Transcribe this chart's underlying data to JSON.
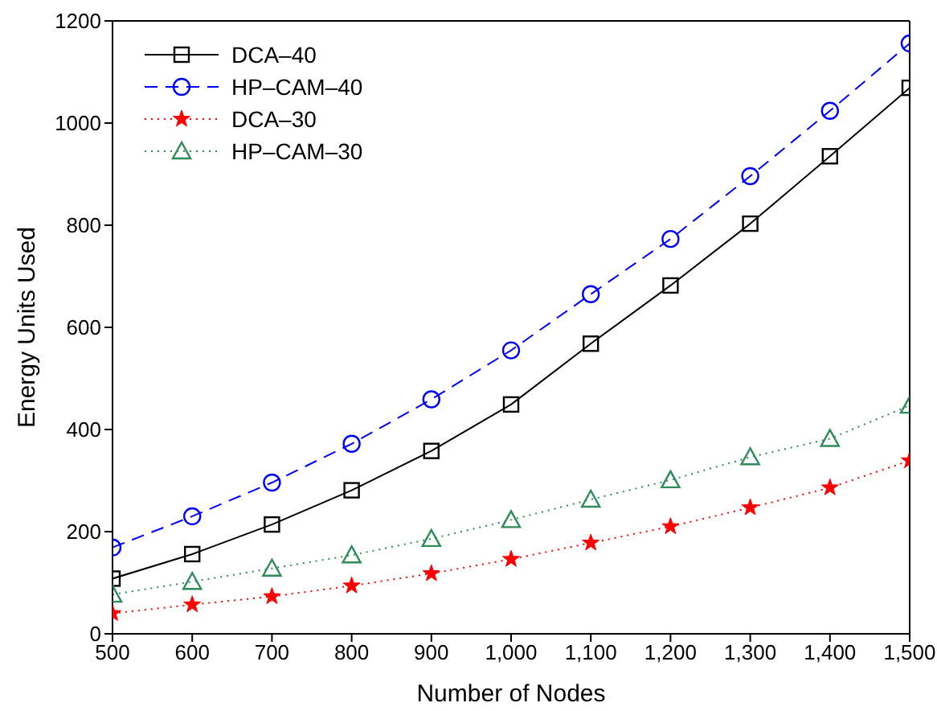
{
  "chart_data": {
    "type": "line",
    "xlabel": "Number of Nodes",
    "ylabel": "Energy Units Used",
    "x": [
      500,
      600,
      700,
      800,
      900,
      1000,
      1100,
      1200,
      1300,
      1400,
      1500
    ],
    "series": [
      {
        "name": "DCA–40",
        "color": "#000000",
        "marker": "square",
        "line_style": "solid",
        "values": [
          108,
          156,
          214,
          281,
          358,
          449,
          568,
          682,
          803,
          935,
          1069
        ]
      },
      {
        "name": "HP–CAM–40",
        "color": "#0000ff",
        "marker": "circle",
        "line_style": "dashed",
        "values": [
          169,
          230,
          296,
          372,
          459,
          555,
          665,
          773,
          896,
          1024,
          1156
        ]
      },
      {
        "name": "DCA–30",
        "color": "#ff0000",
        "marker": "star",
        "line_style": "dotted",
        "values": [
          40,
          57,
          73,
          94,
          118,
          146,
          178,
          210,
          247,
          286,
          339
        ]
      },
      {
        "name": "HP–CAM–30",
        "color": "#2e8b57",
        "marker": "triangle",
        "line_style": "dotted",
        "values": [
          77,
          102,
          128,
          154,
          186,
          223,
          263,
          301,
          346,
          382,
          447
        ]
      }
    ],
    "xlim": [
      500,
      1500
    ],
    "xticks": [
      500,
      600,
      700,
      800,
      900,
      {
        "value": 1000,
        "label": "1,000"
      },
      {
        "value": 1100,
        "label": "1,100"
      },
      {
        "value": 1200,
        "label": "1,200"
      },
      {
        "value": 1300,
        "label": "1,300"
      },
      {
        "value": 1400,
        "label": "1,400"
      },
      {
        "value": 1500,
        "label": "1,500"
      }
    ],
    "ylim": [
      0,
      1200
    ],
    "yticks": [
      0,
      200,
      400,
      600,
      800,
      1000,
      1200
    ],
    "grid": false,
    "legend": "top left"
  }
}
